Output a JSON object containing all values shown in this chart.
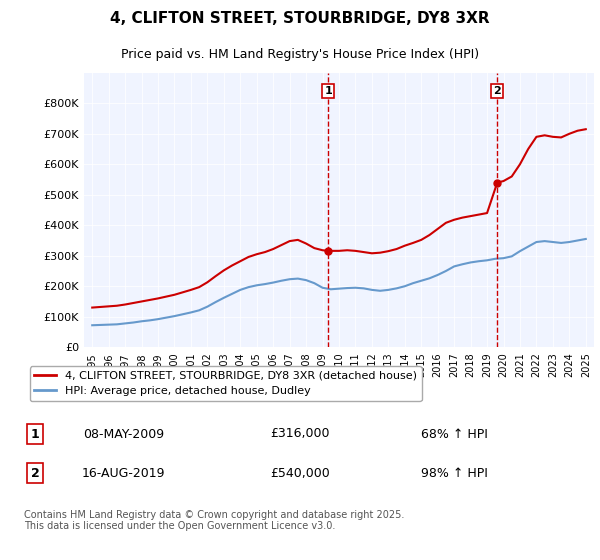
{
  "title": "4, CLIFTON STREET, STOURBRIDGE, DY8 3XR",
  "subtitle": "Price paid vs. HM Land Registry's House Price Index (HPI)",
  "legend_line1": "4, CLIFTON STREET, STOURBRIDGE, DY8 3XR (detached house)",
  "legend_line2": "HPI: Average price, detached house, Dudley",
  "footnote": "Contains HM Land Registry data © Crown copyright and database right 2025.\nThis data is licensed under the Open Government Licence v3.0.",
  "sale1_label": "1",
  "sale1_date": "08-MAY-2009",
  "sale1_price": "£316,000",
  "sale1_hpi": "68% ↑ HPI",
  "sale2_label": "2",
  "sale2_date": "16-AUG-2019",
  "sale2_price": "£540,000",
  "sale2_hpi": "98% ↑ HPI",
  "red_color": "#cc0000",
  "blue_color": "#6699cc",
  "background_color": "#f0f4ff",
  "plot_bg_color": "#f0f4ff",
  "ylim": [
    0,
    900000
  ],
  "yticks": [
    0,
    100000,
    200000,
    300000,
    400000,
    500000,
    600000,
    700000,
    800000
  ],
  "ytick_labels": [
    "£0",
    "£100K",
    "£200K",
    "£300K",
    "£400K",
    "£500K",
    "£600K",
    "£700K",
    "£800K"
  ],
  "xmin": 1994.5,
  "xmax": 2025.5,
  "sale1_x": 2009.35,
  "sale2_x": 2019.62,
  "sale1_y": 316000,
  "sale2_y": 540000,
  "hpi_x": [
    1995,
    1995.5,
    1996,
    1996.5,
    1997,
    1997.5,
    1998,
    1998.5,
    1999,
    1999.5,
    2000,
    2000.5,
    2001,
    2001.5,
    2002,
    2002.5,
    2003,
    2003.5,
    2004,
    2004.5,
    2005,
    2005.5,
    2006,
    2006.5,
    2007,
    2007.5,
    2008,
    2008.5,
    2009,
    2009.5,
    2010,
    2010.5,
    2011,
    2011.5,
    2012,
    2012.5,
    2013,
    2013.5,
    2014,
    2014.5,
    2015,
    2015.5,
    2016,
    2016.5,
    2017,
    2017.5,
    2018,
    2018.5,
    2019,
    2019.5,
    2020,
    2020.5,
    2021,
    2021.5,
    2022,
    2022.5,
    2023,
    2023.5,
    2024,
    2024.5,
    2025
  ],
  "hpi_y": [
    72000,
    73000,
    74000,
    75000,
    78000,
    81000,
    85000,
    88000,
    92000,
    97000,
    102000,
    108000,
    114000,
    121000,
    133000,
    148000,
    162000,
    175000,
    188000,
    197000,
    203000,
    207000,
    212000,
    218000,
    223000,
    225000,
    220000,
    210000,
    195000,
    190000,
    192000,
    194000,
    195000,
    193000,
    188000,
    185000,
    188000,
    193000,
    200000,
    210000,
    218000,
    226000,
    237000,
    250000,
    265000,
    272000,
    278000,
    282000,
    285000,
    290000,
    292000,
    298000,
    315000,
    330000,
    345000,
    348000,
    345000,
    342000,
    345000,
    350000,
    355000
  ],
  "red_x": [
    1995,
    1995.5,
    1996,
    1996.5,
    1997,
    1997.5,
    1998,
    1998.5,
    1999,
    1999.5,
    2000,
    2000.5,
    2001,
    2001.5,
    2002,
    2002.5,
    2003,
    2003.5,
    2004,
    2004.5,
    2005,
    2005.5,
    2006,
    2006.5,
    2007,
    2007.5,
    2008,
    2008.5,
    2009,
    2009.35,
    2009.5,
    2010,
    2010.5,
    2011,
    2011.5,
    2012,
    2012.5,
    2013,
    2013.5,
    2014,
    2014.5,
    2015,
    2015.5,
    2016,
    2016.5,
    2017,
    2017.5,
    2018,
    2018.5,
    2019,
    2019.62,
    2020,
    2020.5,
    2021,
    2021.5,
    2022,
    2022.5,
    2023,
    2023.5,
    2024,
    2024.5,
    2025
  ],
  "red_y": [
    130000,
    132000,
    134000,
    136000,
    140000,
    145000,
    150000,
    155000,
    160000,
    166000,
    172000,
    180000,
    188000,
    197000,
    213000,
    233000,
    252000,
    268000,
    282000,
    296000,
    305000,
    312000,
    322000,
    335000,
    348000,
    352000,
    340000,
    325000,
    318000,
    316000,
    316000,
    316000,
    318000,
    316000,
    312000,
    308000,
    310000,
    315000,
    322000,
    333000,
    342000,
    352000,
    368000,
    388000,
    408000,
    418000,
    425000,
    430000,
    435000,
    440000,
    540000,
    545000,
    560000,
    600000,
    650000,
    690000,
    695000,
    690000,
    688000,
    700000,
    710000,
    715000
  ]
}
